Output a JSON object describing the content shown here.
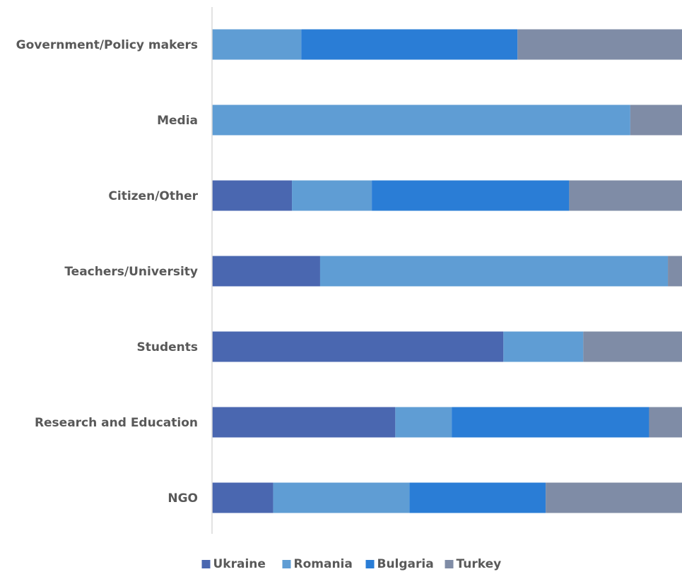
{
  "chart_data": {
    "type": "bar",
    "orientation": "horizontal",
    "stacked": "percent",
    "categories": [
      "Government/Policy makers",
      "Media",
      "Citizen/Other",
      "Teachers/University",
      "Students",
      "Research and Education",
      "NGO"
    ],
    "series": [
      {
        "name": "Ukraine",
        "color": "#4a67b0",
        "values": [
          0,
          0,
          17,
          23,
          62,
          39,
          13
        ]
      },
      {
        "name": "Romania",
        "color": "#5f9dd4",
        "values": [
          19,
          89,
          17,
          74,
          17,
          12,
          29
        ]
      },
      {
        "name": "Bulgaria",
        "color": "#2a7dd6",
        "values": [
          46,
          0,
          42,
          0,
          0,
          42,
          29
        ]
      },
      {
        "name": "Turkey",
        "color": "#7f8ca6",
        "values": [
          35,
          11,
          24,
          3,
          21,
          7,
          29
        ]
      }
    ],
    "grid": false,
    "legend_position": "bottom",
    "axis_color": "#d9d9d9",
    "label_color": "#595959"
  }
}
